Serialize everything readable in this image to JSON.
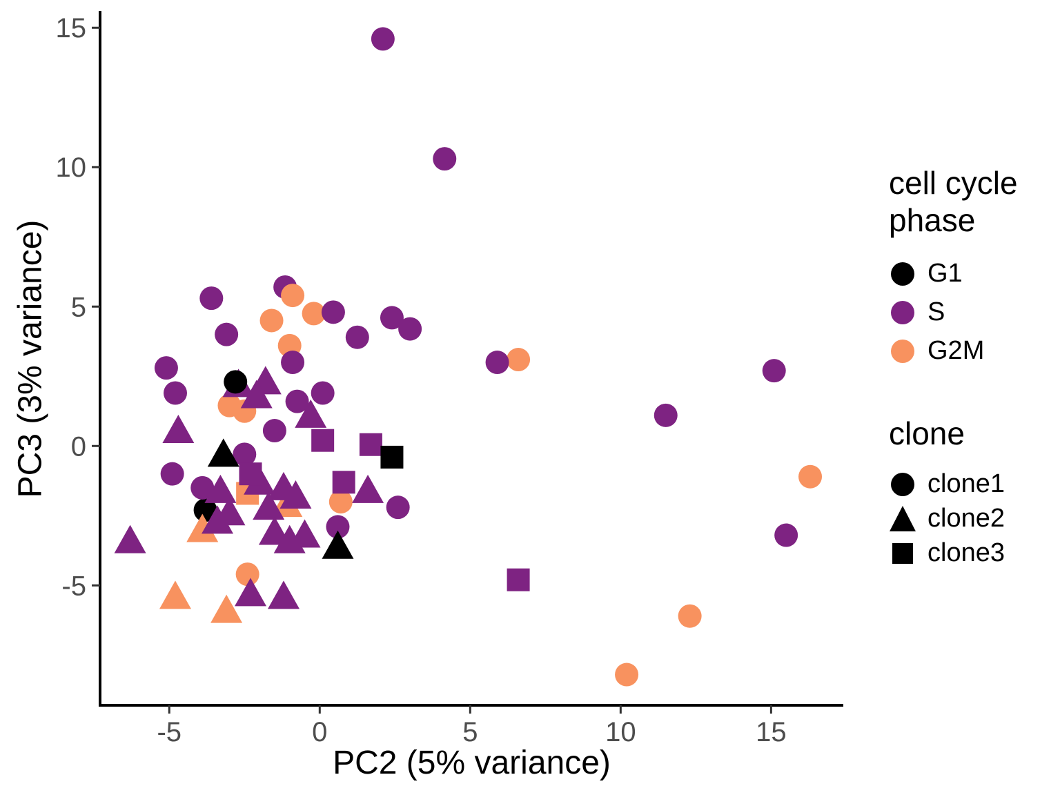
{
  "figure": {
    "background": "#ffffff",
    "axis_color": "#000000",
    "tick_label_color": "#4d4d4d"
  },
  "chart_data": {
    "type": "scatter",
    "title": "",
    "xlabel": "PC2 (5% variance)",
    "ylabel": "PC3 (3% variance)",
    "xlim": [
      -7.3,
      17.4
    ],
    "ylim": [
      -9.3,
      15.6
    ],
    "x_ticks": [
      -5,
      0,
      5,
      10,
      15
    ],
    "y_ticks": [
      -5,
      0,
      5,
      10,
      15
    ],
    "grid": false,
    "legend_position": "right",
    "series_encoding": {
      "color": "cell cycle phase",
      "shape": "clone"
    },
    "legend": {
      "phase": {
        "title_lines": [
          "cell cycle",
          "phase"
        ],
        "entries": [
          {
            "label": "G1",
            "color": "#000000"
          },
          {
            "label": "S",
            "color": "#7E2382"
          },
          {
            "label": "G2M",
            "color": "#F8925F"
          }
        ]
      },
      "clone": {
        "title": "clone",
        "entries": [
          {
            "label": "clone1",
            "shape": "circle"
          },
          {
            "label": "clone2",
            "shape": "triangle"
          },
          {
            "label": "clone3",
            "shape": "square"
          }
        ]
      }
    },
    "points": [
      [
        -3.8,
        -2.3,
        "G1",
        "clone1"
      ],
      [
        -1.15,
        5.7,
        "S",
        "clone1"
      ],
      [
        -0.9,
        5.4,
        "G2M",
        "clone1"
      ],
      [
        -0.2,
        4.75,
        "G2M",
        "clone1"
      ],
      [
        -1.6,
        4.5,
        "G2M",
        "clone1"
      ],
      [
        -1.0,
        3.6,
        "G2M",
        "clone1"
      ],
      [
        -3.0,
        1.45,
        "G2M",
        "clone1"
      ],
      [
        -2.5,
        1.25,
        "G2M",
        "clone1"
      ],
      [
        0.7,
        -2.0,
        "G2M",
        "clone1"
      ],
      [
        -2.4,
        -4.6,
        "G2M",
        "clone1"
      ],
      [
        6.6,
        3.1,
        "G2M",
        "clone1"
      ],
      [
        16.3,
        -1.1,
        "G2M",
        "clone1"
      ],
      [
        12.3,
        -6.1,
        "G2M",
        "clone1"
      ],
      [
        10.2,
        -8.2,
        "G2M",
        "clone1"
      ],
      [
        -3.9,
        -3.0,
        "G2M",
        "clone2"
      ],
      [
        -1.1,
        -2.1,
        "G2M",
        "clone2"
      ],
      [
        -4.8,
        -5.4,
        "G2M",
        "clone2"
      ],
      [
        -3.1,
        -5.9,
        "G2M",
        "clone2"
      ],
      [
        -2.4,
        -1.7,
        "G2M",
        "clone3"
      ],
      [
        2.1,
        14.6,
        "S",
        "clone1"
      ],
      [
        4.15,
        10.3,
        "S",
        "clone1"
      ],
      [
        -3.6,
        5.3,
        "S",
        "clone1"
      ],
      [
        0.45,
        4.8,
        "S",
        "clone1"
      ],
      [
        2.4,
        4.6,
        "S",
        "clone1"
      ],
      [
        3.0,
        4.2,
        "S",
        "clone1"
      ],
      [
        1.25,
        3.9,
        "S",
        "clone1"
      ],
      [
        -3.1,
        4.0,
        "S",
        "clone1"
      ],
      [
        -0.9,
        3.0,
        "S",
        "clone1"
      ],
      [
        5.9,
        3.0,
        "S",
        "clone1"
      ],
      [
        15.1,
        2.7,
        "S",
        "clone1"
      ],
      [
        -5.1,
        2.8,
        "S",
        "clone1"
      ],
      [
        -4.8,
        1.9,
        "S",
        "clone1"
      ],
      [
        -0.75,
        1.6,
        "S",
        "clone1"
      ],
      [
        0.1,
        1.9,
        "S",
        "clone1"
      ],
      [
        11.5,
        1.1,
        "S",
        "clone1"
      ],
      [
        -1.5,
        0.55,
        "S",
        "clone1"
      ],
      [
        -4.9,
        -1.0,
        "S",
        "clone1"
      ],
      [
        -2.5,
        -0.3,
        "S",
        "clone1"
      ],
      [
        -3.9,
        -1.5,
        "S",
        "clone1"
      ],
      [
        2.6,
        -2.2,
        "S",
        "clone1"
      ],
      [
        0.6,
        -2.9,
        "S",
        "clone1"
      ],
      [
        15.5,
        -3.2,
        "S",
        "clone1"
      ],
      [
        -2.7,
        2.2,
        "S",
        "clone2"
      ],
      [
        -1.8,
        2.3,
        "S",
        "clone2"
      ],
      [
        -2.1,
        1.8,
        "S",
        "clone2"
      ],
      [
        -0.3,
        1.1,
        "S",
        "clone2"
      ],
      [
        -4.7,
        0.55,
        "S",
        "clone2"
      ],
      [
        -3.3,
        -1.6,
        "S",
        "clone2"
      ],
      [
        -2.0,
        -1.3,
        "S",
        "clone2"
      ],
      [
        -1.2,
        -1.5,
        "S",
        "clone2"
      ],
      [
        -0.8,
        -1.8,
        "S",
        "clone2"
      ],
      [
        1.6,
        -1.6,
        "S",
        "clone2"
      ],
      [
        -3.0,
        -2.4,
        "S",
        "clone2"
      ],
      [
        -1.7,
        -2.2,
        "S",
        "clone2"
      ],
      [
        -3.4,
        -2.7,
        "S",
        "clone2"
      ],
      [
        -1.5,
        -3.1,
        "S",
        "clone2"
      ],
      [
        -1.0,
        -3.4,
        "S",
        "clone2"
      ],
      [
        -0.5,
        -3.2,
        "S",
        "clone2"
      ],
      [
        -6.3,
        -3.4,
        "S",
        "clone2"
      ],
      [
        -2.3,
        -5.3,
        "S",
        "clone2"
      ],
      [
        -1.2,
        -5.4,
        "S",
        "clone2"
      ],
      [
        -2.3,
        -1.0,
        "S",
        "clone3"
      ],
      [
        0.1,
        0.2,
        "S",
        "clone3"
      ],
      [
        1.7,
        0.05,
        "S",
        "clone3"
      ],
      [
        0.8,
        -1.3,
        "S",
        "clone3"
      ],
      [
        6.6,
        -4.8,
        "S",
        "clone3"
      ],
      [
        -2.8,
        2.3,
        "G1",
        "clone1"
      ],
      [
        -3.2,
        -0.3,
        "G1",
        "clone2"
      ],
      [
        0.6,
        -3.6,
        "G1",
        "clone2"
      ],
      [
        2.4,
        -0.4,
        "G1",
        "clone3"
      ]
    ]
  }
}
